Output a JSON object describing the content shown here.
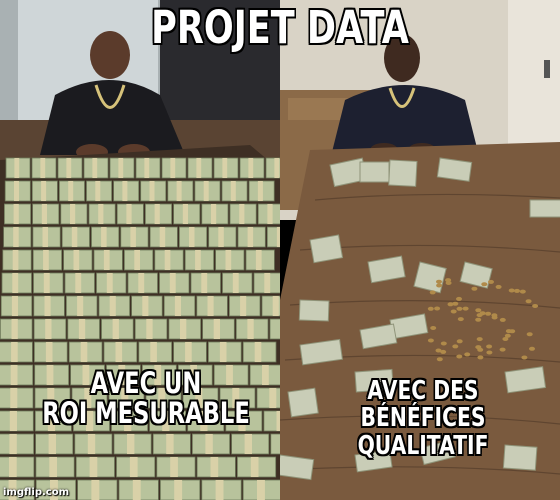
{
  "meme": {
    "title": "PROJET DATA",
    "caption_left": "AVEC UN\nROI MESURABLE",
    "caption_right": "AVEC DES\nBÉNÉFICES QUALITATIF",
    "watermark": "imgflip.com"
  },
  "left_panel": {
    "scene": "man-at-table-with-cash-stacks",
    "colors": {
      "wall": "#a9b1b3",
      "window": "#cfd6d8",
      "floor": "#5a4433",
      "table": "#3e2f24",
      "cash_stack": "#b8c39c",
      "cash_band": "#d9d1a8",
      "shirt": "#1b1b1f",
      "skin": "#5b3b2b"
    }
  },
  "right_panel": {
    "scene": "man-at-table-with-scattered-bills-and-coins",
    "colors": {
      "wall": "#d9d3c6",
      "door": "#e9e4da",
      "cabinet": "#8b6a48",
      "table": "#7a5a3e",
      "table_grain": "#5f4530",
      "bill": "#c9cdb7",
      "coin": "#b08a4a",
      "shirt": "#1d2030",
      "skin": "#3f2a20"
    }
  }
}
